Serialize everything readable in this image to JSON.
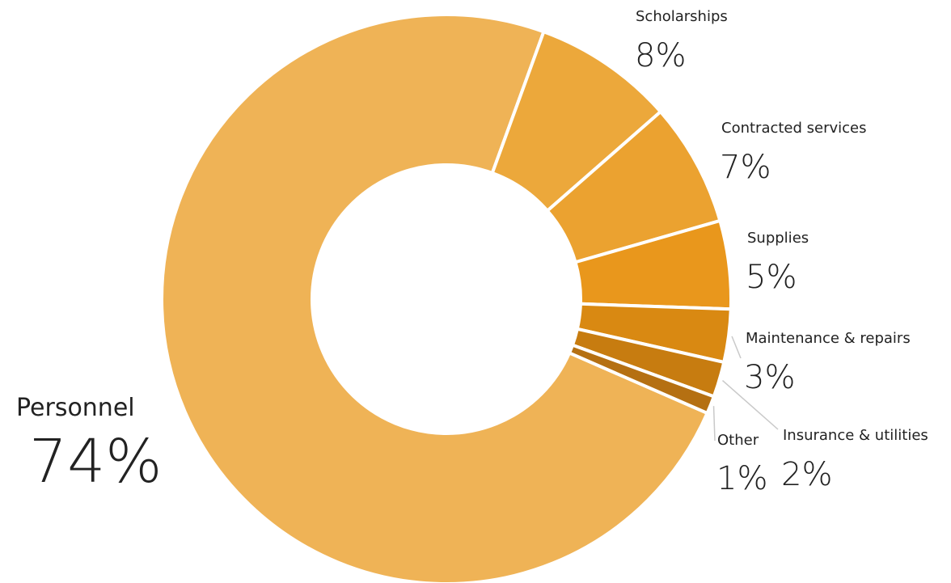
{
  "chart_data": {
    "type": "pie",
    "title": "",
    "categories": [
      "Personnel",
      "Scholarships",
      "Contracted services",
      "Supplies",
      "Maintenance & repairs",
      "Insurance & utilities",
      "Other"
    ],
    "values": [
      74,
      8,
      7,
      5,
      3,
      2,
      1
    ],
    "value_labels": [
      "74%",
      "8%",
      "7%",
      "5%",
      "3%",
      "2%",
      "1%"
    ],
    "unit": "%",
    "donut": true,
    "colors": [
      "#efb356",
      "#eca83b",
      "#eba230",
      "#e9971c",
      "#d98912",
      "#c77c10",
      "#b57012"
    ],
    "legend": "none"
  }
}
